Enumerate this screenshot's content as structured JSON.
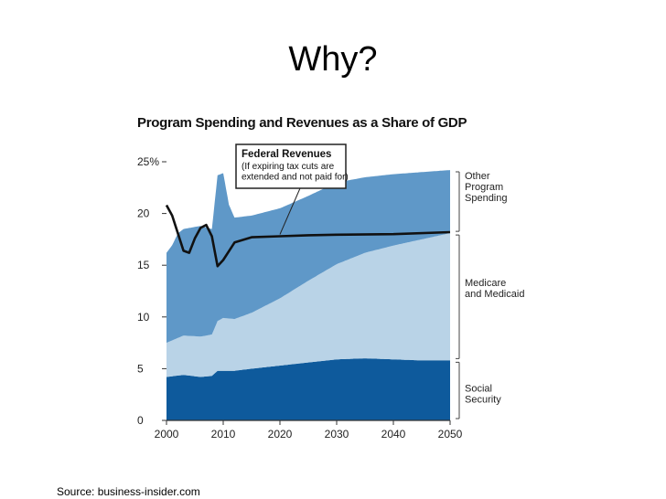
{
  "slide": {
    "title": "Why?",
    "source": "Source: business-insider.com"
  },
  "chart_data": {
    "type": "area",
    "title": "Program Spending and Revenues as a Share of GDP",
    "xlabel": "",
    "ylabel": "",
    "xlim": [
      2000,
      2050
    ],
    "ylim": [
      0,
      25
    ],
    "x_ticks": [
      "2000",
      "2010",
      "2020",
      "2030",
      "2040",
      "2050"
    ],
    "y_ticks": [
      "0",
      "5",
      "10",
      "15",
      "20",
      "25%"
    ],
    "y_tick_values": [
      0,
      5,
      10,
      15,
      20,
      25
    ],
    "series": [
      {
        "name": "Social Security",
        "label": [
          "Social",
          "Security"
        ],
        "color": "#0e5a9c",
        "points": [
          [
            2000,
            4.2
          ],
          [
            2003,
            4.4
          ],
          [
            2006,
            4.2
          ],
          [
            2008,
            4.3
          ],
          [
            2009,
            4.8
          ],
          [
            2012,
            4.8
          ],
          [
            2015,
            5.0
          ],
          [
            2020,
            5.3
          ],
          [
            2025,
            5.6
          ],
          [
            2030,
            5.9
          ],
          [
            2035,
            6.0
          ],
          [
            2040,
            5.9
          ],
          [
            2045,
            5.8
          ],
          [
            2050,
            5.8
          ]
        ]
      },
      {
        "name": "Medicare and Medicaid",
        "label": [
          "Medicare",
          "and Medicaid"
        ],
        "color": "#b9d3e7",
        "points": [
          [
            2000,
            3.3
          ],
          [
            2003,
            3.8
          ],
          [
            2006,
            3.9
          ],
          [
            2008,
            4.0
          ],
          [
            2009,
            4.8
          ],
          [
            2010,
            5.1
          ],
          [
            2012,
            5.0
          ],
          [
            2015,
            5.4
          ],
          [
            2020,
            6.5
          ],
          [
            2025,
            7.9
          ],
          [
            2030,
            9.2
          ],
          [
            2035,
            10.2
          ],
          [
            2040,
            11.0
          ],
          [
            2045,
            11.7
          ],
          [
            2050,
            12.3
          ]
        ]
      },
      {
        "name": "Other Program Spending",
        "label": [
          "Other",
          "Program",
          "Spending"
        ],
        "color": "#5f98c8",
        "points": [
          [
            2000,
            8.7
          ],
          [
            2001,
            9.2
          ],
          [
            2002,
            10.1
          ],
          [
            2003,
            10.3
          ],
          [
            2006,
            10.7
          ],
          [
            2008,
            10.2
          ],
          [
            2009,
            14.1
          ],
          [
            2010,
            14.0
          ],
          [
            2011,
            11.0
          ],
          [
            2012,
            9.8
          ],
          [
            2015,
            9.4
          ],
          [
            2020,
            8.7
          ],
          [
            2025,
            8.2
          ],
          [
            2030,
            7.9
          ],
          [
            2035,
            7.3
          ],
          [
            2040,
            6.9
          ],
          [
            2045,
            6.5
          ],
          [
            2050,
            6.1
          ]
        ]
      }
    ],
    "line_series": {
      "name": "Federal Revenues",
      "color": "#111111",
      "points": [
        [
          2000,
          20.8
        ],
        [
          2001,
          19.8
        ],
        [
          2003,
          16.4
        ],
        [
          2004,
          16.2
        ],
        [
          2005,
          17.6
        ],
        [
          2006,
          18.6
        ],
        [
          2007,
          18.9
        ],
        [
          2008,
          17.8
        ],
        [
          2009,
          14.9
        ],
        [
          2010,
          15.5
        ],
        [
          2012,
          17.2
        ],
        [
          2015,
          17.7
        ],
        [
          2020,
          17.8
        ],
        [
          2025,
          17.9
        ],
        [
          2030,
          17.95
        ],
        [
          2040,
          18.0
        ],
        [
          2050,
          18.2
        ]
      ]
    },
    "annotation": {
      "title": "Federal Revenues",
      "note": [
        "(If expiring tax cuts are",
        "extended and not paid for)"
      ],
      "points_to": [
        2020,
        17.8
      ]
    }
  }
}
